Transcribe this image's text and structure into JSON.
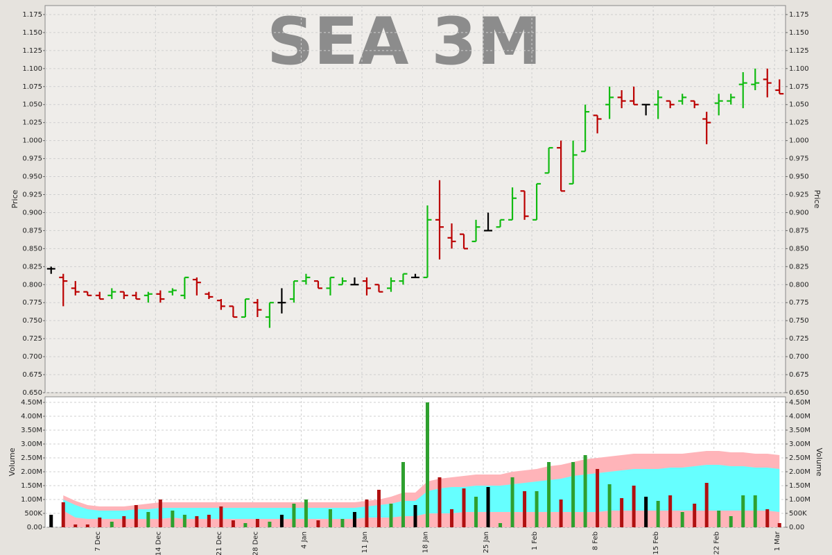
{
  "chart_data": [
    {
      "type": "ohlc",
      "title": "SEA 3M",
      "ylabel": "Price",
      "grid": true,
      "up_color": "#11bb11",
      "down_color": "#bb0000",
      "flat_color": "#000000",
      "ylim": [
        0.65,
        1.1875
      ],
      "yticks": [
        {
          "value": 0.65,
          "label": "0.650"
        },
        0.675,
        {
          "value": 0.7,
          "label": "0.700"
        },
        0.725,
        {
          "value": 0.75,
          "label": "0.750"
        },
        0.775,
        {
          "value": 0.8,
          "label": "0.800"
        },
        0.825,
        {
          "value": 0.85,
          "label": "0.850"
        },
        0.875,
        {
          "value": 0.9,
          "label": "0.900"
        },
        0.925,
        {
          "value": 0.95,
          "label": "0.950"
        },
        0.975,
        {
          "value": 1.0,
          "label": "1.000"
        },
        1.025,
        {
          "value": 1.05,
          "label": "1.050"
        },
        1.075,
        {
          "value": 1.1,
          "label": "1.100"
        },
        1.125,
        {
          "value": 1.15,
          "label": "1.150"
        },
        1.175
      ],
      "open": [
        0.822,
        0.81,
        0.795,
        0.79,
        0.785,
        0.785,
        0.79,
        0.785,
        0.785,
        0.787,
        0.79,
        0.785,
        0.807,
        0.787,
        0.778,
        0.77,
        0.755,
        0.775,
        0.755,
        0.775,
        0.78,
        0.805,
        0.805,
        0.795,
        0.8,
        0.8,
        0.805,
        0.8,
        0.795,
        0.805,
        0.81,
        0.81,
        0.89,
        0.865,
        0.87,
        0.86,
        0.875,
        0.88,
        0.89,
        0.93,
        0.89,
        0.955,
        0.99,
        0.94,
        0.985,
        1.035,
        1.05,
        1.06,
        1.055,
        1.05,
        1.05,
        1.055,
        1.055,
        1.055,
        1.03,
        1.052,
        1.055,
        1.078,
        1.078,
        1.085,
        1.07
      ],
      "high": [
        0.825,
        0.815,
        0.805,
        0.79,
        0.79,
        0.795,
        0.79,
        0.79,
        0.79,
        0.792,
        0.795,
        0.81,
        0.81,
        0.79,
        0.78,
        0.77,
        0.78,
        0.78,
        0.775,
        0.795,
        0.805,
        0.815,
        0.805,
        0.81,
        0.81,
        0.81,
        0.81,
        0.8,
        0.81,
        0.815,
        0.815,
        0.91,
        0.945,
        0.885,
        0.87,
        0.89,
        0.9,
        0.89,
        0.935,
        0.93,
        0.94,
        0.99,
        1.0,
        1.0,
        1.05,
        1.035,
        1.075,
        1.07,
        1.075,
        1.05,
        1.07,
        1.055,
        1.065,
        1.055,
        1.04,
        1.065,
        1.065,
        1.095,
        1.1,
        1.1,
        1.085
      ],
      "low": [
        0.815,
        0.77,
        0.785,
        0.785,
        0.78,
        0.78,
        0.78,
        0.78,
        0.775,
        0.775,
        0.785,
        0.78,
        0.785,
        0.78,
        0.765,
        0.755,
        0.755,
        0.755,
        0.74,
        0.76,
        0.775,
        0.8,
        0.795,
        0.785,
        0.8,
        0.8,
        0.785,
        0.79,
        0.79,
        0.8,
        0.81,
        0.81,
        0.835,
        0.85,
        0.85,
        0.86,
        0.875,
        0.88,
        0.89,
        0.89,
        0.89,
        0.955,
        0.93,
        0.94,
        0.985,
        1.01,
        1.03,
        1.045,
        1.05,
        1.035,
        1.03,
        1.045,
        1.05,
        1.045,
        0.995,
        1.035,
        1.05,
        1.045,
        1.07,
        1.06,
        1.065
      ],
      "close": [
        0.822,
        0.805,
        0.79,
        0.785,
        0.78,
        0.79,
        0.785,
        0.78,
        0.787,
        0.78,
        0.792,
        0.81,
        0.803,
        0.783,
        0.77,
        0.755,
        0.78,
        0.765,
        0.775,
        0.775,
        0.805,
        0.81,
        0.795,
        0.81,
        0.805,
        0.8,
        0.795,
        0.79,
        0.805,
        0.815,
        0.81,
        0.89,
        0.88,
        0.86,
        0.85,
        0.88,
        0.875,
        0.89,
        0.92,
        0.895,
        0.94,
        0.99,
        0.93,
        0.98,
        1.04,
        1.03,
        1.06,
        1.055,
        1.05,
        1.05,
        1.06,
        1.05,
        1.06,
        1.05,
        1.025,
        1.055,
        1.06,
        1.08,
        1.08,
        1.08,
        1.065
      ]
    },
    {
      "type": "bar",
      "ylabel": "Volume",
      "grid": true,
      "up_color": "#2ea02e",
      "down_color": "#b01010",
      "flat_color": "#000000",
      "ylim": [
        0,
        4700000
      ],
      "yticks": [
        {
          "value": 0,
          "label": "0.00"
        },
        {
          "value": 500000,
          "label": "500K"
        },
        {
          "value": 1000000,
          "label": "1.00M"
        },
        {
          "value": 1500000,
          "label": "1.50M"
        },
        {
          "value": 2000000,
          "label": "2.00M"
        },
        {
          "value": 2500000,
          "label": "2.50M"
        },
        {
          "value": 3000000,
          "label": "3.00M"
        },
        {
          "value": 3500000,
          "label": "3.50M"
        },
        {
          "value": 4000000,
          "label": "4.00M"
        },
        {
          "value": 4500000,
          "label": "4.50M"
        }
      ],
      "categories": [
        null,
        null,
        null,
        null,
        "7 Dec",
        null,
        null,
        null,
        null,
        "14 Dec",
        null,
        null,
        null,
        null,
        "21 Dec",
        null,
        null,
        "28 Dec",
        null,
        null,
        null,
        "4 Jan",
        null,
        null,
        null,
        null,
        "11 Jan",
        null,
        null,
        null,
        null,
        "18 Jan",
        null,
        null,
        null,
        null,
        "25 Jan",
        null,
        null,
        null,
        "1 Feb",
        null,
        null,
        null,
        null,
        "8 Feb",
        null,
        null,
        null,
        null,
        "15 Feb",
        null,
        null,
        null,
        null,
        "22 Feb",
        null,
        null,
        null,
        null,
        "1 Mar"
      ],
      "values": [
        450000,
        900000,
        100000,
        100000,
        350000,
        200000,
        400000,
        800000,
        550000,
        1000000,
        600000,
        450000,
        400000,
        450000,
        750000,
        250000,
        150000,
        300000,
        200000,
        450000,
        850000,
        1000000,
        250000,
        650000,
        300000,
        550000,
        1000000,
        1350000,
        850000,
        2350000,
        800000,
        4500000,
        1800000,
        650000,
        1400000,
        1100000,
        1450000,
        150000,
        1800000,
        1300000,
        1300000,
        2350000,
        1000000,
        2350000,
        2600000,
        2100000,
        1550000,
        1050000,
        1500000,
        1100000,
        950000,
        1150000,
        550000,
        850000,
        1600000,
        600000,
        400000,
        1150000,
        1150000,
        650000,
        150000
      ],
      "upper_band": {
        "color": "#ffb4b9",
        "values": [
          null,
          1150000,
          950000,
          800000,
          750000,
          750000,
          750000,
          800000,
          850000,
          900000,
          900000,
          900000,
          900000,
          900000,
          900000,
          900000,
          900000,
          900000,
          900000,
          900000,
          900000,
          900000,
          900000,
          900000,
          900000,
          900000,
          950000,
          1000000,
          1100000,
          1250000,
          1250000,
          1650000,
          1750000,
          1800000,
          1850000,
          1900000,
          1900000,
          1900000,
          2000000,
          2050000,
          2100000,
          2200000,
          2250000,
          2350000,
          2450000,
          2500000,
          2550000,
          2600000,
          2650000,
          2650000,
          2650000,
          2650000,
          2650000,
          2700000,
          2750000,
          2750000,
          2700000,
          2700000,
          2650000,
          2650000,
          2600000
        ]
      },
      "inner_band": {
        "color": "#66ffff",
        "upper": [
          null,
          1000000,
          800000,
          650000,
          600000,
          600000,
          600000,
          650000,
          650000,
          700000,
          700000,
          700000,
          700000,
          700000,
          700000,
          700000,
          700000,
          700000,
          700000,
          700000,
          700000,
          700000,
          700000,
          700000,
          700000,
          700000,
          750000,
          800000,
          850000,
          950000,
          950000,
          1300000,
          1400000,
          1450000,
          1450000,
          1500000,
          1500000,
          1500000,
          1550000,
          1600000,
          1650000,
          1700000,
          1750000,
          1850000,
          1900000,
          1950000,
          2000000,
          2050000,
          2100000,
          2100000,
          2100000,
          2150000,
          2150000,
          2200000,
          2250000,
          2250000,
          2200000,
          2200000,
          2150000,
          2150000,
          2100000
        ],
        "lower": [
          null,
          600000,
          350000,
          300000,
          300000,
          300000,
          300000,
          300000,
          300000,
          300000,
          350000,
          300000,
          300000,
          300000,
          300000,
          300000,
          300000,
          300000,
          300000,
          300000,
          300000,
          300000,
          300000,
          300000,
          300000,
          300000,
          350000,
          350000,
          350000,
          400000,
          400000,
          500000,
          500000,
          500000,
          550000,
          550000,
          550000,
          550000,
          550000,
          550000,
          550000,
          550000,
          550000,
          550000,
          550000,
          550000,
          600000,
          600000,
          600000,
          600000,
          600000,
          600000,
          600000,
          600000,
          600000,
          600000,
          600000,
          600000,
          600000,
          600000,
          550000
        ]
      }
    }
  ]
}
